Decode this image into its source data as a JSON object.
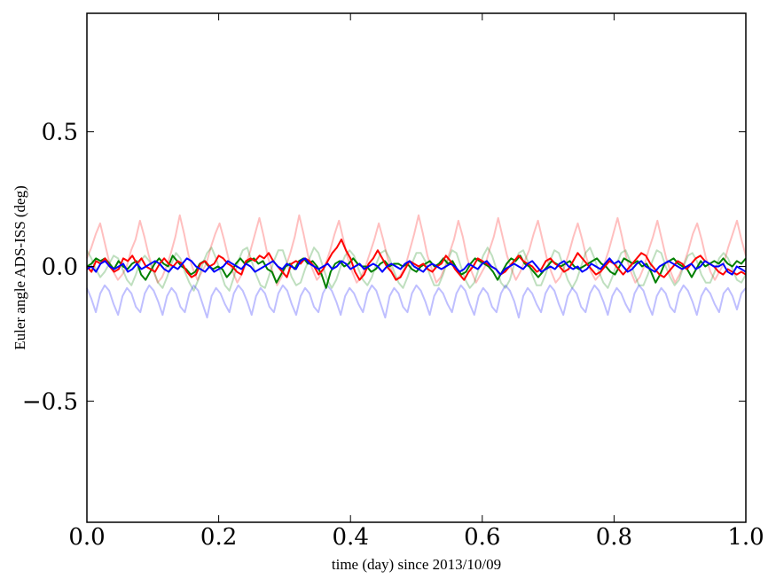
{
  "chart_data": {
    "type": "line",
    "title": "",
    "xlabel": "time (day) since 2013/10/09",
    "ylabel": "Euler angle ADS-ISS (deg)",
    "xlim": [
      0.0,
      1.0
    ],
    "ylim": [
      -0.95,
      0.94
    ],
    "xticks": [
      0.0,
      0.2,
      0.4,
      0.6,
      0.8,
      1.0
    ],
    "xtick_labels": [
      "0.0",
      "0.2",
      "0.4",
      "0.6",
      "0.8",
      "1.0"
    ],
    "yticks": [
      -0.5,
      0.0,
      0.5
    ],
    "ytick_labels": [
      "−0.5",
      "0.0",
      "0.5"
    ],
    "grid": false,
    "legend": "none",
    "series": [
      {
        "color": "#ff0000",
        "opacity": 0.25,
        "values": [
          0.03,
          0.07,
          0.12,
          0.16,
          0.09,
          0.02,
          -0.02,
          -0.05,
          -0.03,
          0.0,
          0.06,
          0.1,
          0.17,
          0.11,
          0.04,
          -0.01,
          -0.06,
          -0.04,
          0.0,
          0.05,
          0.11,
          0.19,
          0.12,
          0.04,
          -0.01,
          -0.05,
          -0.02,
          0.01,
          0.07,
          0.12,
          0.16,
          0.1,
          0.03,
          -0.02,
          -0.06,
          -0.03,
          0.01,
          0.06,
          0.12,
          0.18,
          0.11,
          0.03,
          -0.02,
          -0.07,
          -0.04,
          0.0,
          0.05,
          0.11,
          0.19,
          0.12,
          0.04,
          -0.01,
          -0.05,
          -0.03,
          0.01,
          0.06,
          0.12,
          0.17,
          0.1,
          0.03,
          -0.02,
          -0.06,
          -0.04,
          0.0,
          0.05,
          0.1,
          0.16,
          0.1,
          0.03,
          -0.02,
          -0.05,
          -0.03,
          0.0,
          0.06,
          0.12,
          0.19,
          0.12,
          0.04,
          -0.01,
          -0.06,
          -0.04,
          0.0,
          0.05,
          0.1,
          0.17,
          0.11,
          0.03,
          -0.02,
          -0.06,
          -0.03,
          0.0,
          0.06,
          0.11,
          0.18,
          0.11,
          0.04,
          -0.01,
          -0.05,
          -0.02,
          0.02,
          0.06,
          0.12,
          0.17,
          0.1,
          0.03,
          -0.02,
          -0.06,
          -0.04,
          0.0,
          0.05,
          0.11,
          0.16,
          0.1,
          0.03,
          -0.02,
          -0.05,
          -0.03,
          0.01,
          0.06,
          0.12,
          0.18,
          0.11,
          0.03,
          -0.02,
          -0.06,
          -0.04,
          0.0,
          0.06,
          0.11,
          0.17,
          0.1,
          0.03,
          -0.02,
          -0.06,
          -0.03,
          0.01,
          0.06,
          0.12,
          0.16,
          0.1,
          0.03,
          -0.02,
          -0.05,
          -0.02,
          0.01,
          0.07,
          0.12,
          0.17,
          0.1,
          0.04
        ]
      },
      {
        "color": "#008000",
        "opacity": 0.25,
        "values": [
          0.06,
          0.03,
          -0.01,
          -0.04,
          -0.02,
          0.01,
          0.04,
          0.03,
          -0.01,
          -0.05,
          -0.07,
          -0.03,
          0.02,
          0.04,
          0.02,
          -0.02,
          -0.06,
          -0.08,
          -0.04,
          0.01,
          0.05,
          0.03,
          -0.02,
          -0.06,
          -0.09,
          -0.05,
          0.01,
          0.05,
          0.07,
          0.03,
          -0.02,
          -0.07,
          -0.09,
          -0.04,
          0.02,
          0.06,
          0.07,
          0.02,
          -0.03,
          -0.07,
          -0.08,
          -0.03,
          0.02,
          0.06,
          0.06,
          0.01,
          -0.04,
          -0.07,
          -0.06,
          -0.01,
          0.03,
          0.07,
          0.05,
          0.0,
          -0.05,
          -0.08,
          -0.05,
          0.0,
          0.04,
          0.06,
          0.04,
          -0.01,
          -0.05,
          -0.07,
          -0.04,
          0.01,
          0.05,
          0.06,
          0.03,
          -0.02,
          -0.06,
          -0.08,
          -0.04,
          0.01,
          0.05,
          0.05,
          0.02,
          -0.03,
          -0.07,
          -0.07,
          -0.03,
          0.02,
          0.06,
          0.05,
          0.0,
          -0.05,
          -0.08,
          -0.06,
          -0.01,
          0.04,
          0.07,
          0.04,
          -0.01,
          -0.06,
          -0.08,
          -0.05,
          0.01,
          0.05,
          0.06,
          0.02,
          -0.03,
          -0.07,
          -0.07,
          -0.03,
          0.02,
          0.06,
          0.05,
          0.0,
          -0.05,
          -0.08,
          -0.05,
          0.0,
          0.05,
          0.07,
          0.03,
          -0.02,
          -0.06,
          -0.08,
          -0.04,
          0.01,
          0.05,
          0.06,
          0.02,
          -0.03,
          -0.07,
          -0.07,
          -0.03,
          0.02,
          0.06,
          0.05,
          0.0,
          -0.04,
          -0.07,
          -0.05,
          0.0,
          0.04,
          0.05,
          0.02,
          -0.03,
          -0.06,
          -0.06,
          -0.02,
          0.03,
          0.05,
          0.03,
          -0.01,
          -0.05,
          -0.06,
          -0.03
        ]
      },
      {
        "color": "#0000ff",
        "opacity": 0.25,
        "values": [
          -0.08,
          -0.12,
          -0.17,
          -0.1,
          -0.07,
          -0.09,
          -0.14,
          -0.18,
          -0.11,
          -0.08,
          -0.1,
          -0.15,
          -0.17,
          -0.1,
          -0.07,
          -0.09,
          -0.13,
          -0.18,
          -0.11,
          -0.08,
          -0.1,
          -0.15,
          -0.17,
          -0.1,
          -0.07,
          -0.09,
          -0.14,
          -0.19,
          -0.11,
          -0.08,
          -0.1,
          -0.14,
          -0.17,
          -0.1,
          -0.07,
          -0.09,
          -0.13,
          -0.18,
          -0.11,
          -0.08,
          -0.1,
          -0.15,
          -0.17,
          -0.1,
          -0.07,
          -0.09,
          -0.14,
          -0.18,
          -0.11,
          -0.08,
          -0.1,
          -0.15,
          -0.17,
          -0.1,
          -0.07,
          -0.09,
          -0.13,
          -0.18,
          -0.11,
          -0.08,
          -0.1,
          -0.14,
          -0.17,
          -0.1,
          -0.07,
          -0.09,
          -0.14,
          -0.19,
          -0.11,
          -0.08,
          -0.1,
          -0.15,
          -0.17,
          -0.1,
          -0.07,
          -0.09,
          -0.13,
          -0.18,
          -0.11,
          -0.08,
          -0.1,
          -0.14,
          -0.17,
          -0.1,
          -0.07,
          -0.09,
          -0.14,
          -0.18,
          -0.11,
          -0.08,
          -0.1,
          -0.15,
          -0.17,
          -0.1,
          -0.07,
          -0.09,
          -0.13,
          -0.19,
          -0.11,
          -0.08,
          -0.1,
          -0.14,
          -0.17,
          -0.1,
          -0.07,
          -0.09,
          -0.14,
          -0.18,
          -0.11,
          -0.08,
          -0.1,
          -0.15,
          -0.17,
          -0.1,
          -0.07,
          -0.09,
          -0.13,
          -0.18,
          -0.11,
          -0.08,
          -0.1,
          -0.14,
          -0.17,
          -0.1,
          -0.07,
          -0.09,
          -0.14,
          -0.18,
          -0.11,
          -0.08,
          -0.1,
          -0.15,
          -0.17,
          -0.1,
          -0.07,
          -0.09,
          -0.13,
          -0.18,
          -0.11,
          -0.08,
          -0.1,
          -0.14,
          -0.17,
          -0.1,
          -0.08,
          -0.11,
          -0.16,
          -0.1,
          -0.08
        ]
      },
      {
        "color": "#008000",
        "opacity": 1.0,
        "values": [
          0.0,
          0.01,
          0.03,
          0.02,
          0.03,
          0.01,
          -0.01,
          0.02,
          0.0,
          -0.01,
          0.01,
          0.02,
          -0.03,
          -0.05,
          -0.02,
          0.01,
          0.03,
          0.01,
          0.0,
          0.04,
          0.02,
          0.0,
          -0.01,
          -0.03,
          -0.02,
          0.01,
          0.02,
          0.0,
          -0.01,
          0.0,
          -0.01,
          -0.04,
          -0.02,
          0.01,
          0.03,
          0.01,
          0.02,
          0.03,
          0.01,
          0.02,
          -0.01,
          -0.02,
          -0.06,
          -0.03,
          0.0,
          0.01,
          -0.01,
          0.02,
          0.03,
          0.01,
          0.02,
          0.0,
          -0.03,
          -0.08,
          -0.02,
          0.01,
          0.02,
          0.0,
          0.01,
          0.03,
          0.01,
          0.0,
          0.0,
          -0.02,
          -0.01,
          0.01,
          0.02,
          0.0,
          0.01,
          0.01,
          0.0,
          0.01,
          -0.01,
          -0.02,
          0.0,
          0.01,
          0.02,
          0.0,
          0.01,
          0.03,
          0.01,
          0.02,
          -0.01,
          -0.03,
          -0.02,
          0.01,
          0.03,
          0.02,
          0.01,
          0.0,
          -0.02,
          -0.05,
          -0.02,
          0.01,
          0.03,
          0.02,
          0.04,
          0.01,
          0.0,
          -0.02,
          -0.04,
          -0.02,
          0.0,
          0.02,
          0.01,
          0.0,
          0.01,
          0.02,
          0.0,
          -0.01,
          0.0,
          0.01,
          0.02,
          0.03,
          0.01,
          0.0,
          -0.02,
          -0.03,
          0.0,
          0.03,
          0.02,
          0.01,
          0.02,
          0.0,
          0.01,
          -0.02,
          -0.06,
          -0.03,
          0.01,
          0.02,
          0.03,
          0.01,
          0.0,
          -0.01,
          -0.04,
          -0.01,
          0.02,
          0.0,
          0.01,
          0.02,
          0.01,
          0.03,
          0.01,
          0.0,
          0.02,
          0.01,
          0.03
        ]
      },
      {
        "color": "#ff0000",
        "opacity": 1.0,
        "values": [
          0.0,
          -0.02,
          0.02,
          0.01,
          0.03,
          0.0,
          -0.02,
          -0.01,
          0.03,
          0.02,
          0.04,
          0.01,
          0.03,
          0.0,
          -0.01,
          -0.02,
          0.01,
          0.03,
          0.01,
          0.0,
          0.02,
          0.01,
          -0.02,
          -0.04,
          -0.03,
          0.01,
          0.02,
          0.0,
          0.01,
          0.04,
          0.03,
          0.01,
          0.0,
          -0.02,
          -0.03,
          0.02,
          0.03,
          0.02,
          0.04,
          0.03,
          0.05,
          0.02,
          0.0,
          -0.02,
          -0.04,
          0.01,
          0.02,
          0.01,
          0.03,
          0.02,
          0.0,
          -0.03,
          -0.01,
          0.02,
          0.05,
          0.07,
          0.1,
          0.06,
          0.03,
          -0.02,
          -0.05,
          -0.03,
          0.01,
          0.03,
          0.06,
          0.03,
          0.0,
          -0.02,
          -0.05,
          -0.04,
          -0.01,
          0.02,
          0.01,
          0.0,
          0.01,
          -0.01,
          -0.02,
          0.0,
          0.01,
          0.04,
          0.02,
          -0.01,
          -0.03,
          -0.05,
          -0.02,
          0.0,
          0.03,
          0.02,
          0.01,
          0.0,
          -0.01,
          -0.03,
          -0.02,
          0.0,
          0.02,
          0.04,
          0.02,
          0.01,
          0.0,
          -0.02,
          -0.01,
          0.02,
          0.03,
          0.01,
          0.0,
          -0.02,
          -0.01,
          0.02,
          0.05,
          0.03,
          0.01,
          -0.01,
          -0.03,
          -0.02,
          0.0,
          0.02,
          0.01,
          -0.01,
          -0.03,
          -0.01,
          0.01,
          0.03,
          0.05,
          0.04,
          0.01,
          -0.01,
          -0.03,
          -0.04,
          -0.02,
          0.0,
          0.02,
          0.01,
          -0.01,
          0.01,
          0.03,
          0.04,
          0.02,
          0.01,
          0.0,
          -0.02,
          -0.03,
          -0.01,
          -0.02,
          -0.03,
          -0.02,
          -0.03
        ]
      },
      {
        "color": "#0000ff",
        "opacity": 1.0,
        "values": [
          -0.01,
          0.0,
          -0.02,
          0.01,
          0.02,
          0.0,
          -0.01,
          0.0,
          0.01,
          -0.02,
          -0.01,
          0.01,
          -0.01,
          0.0,
          0.01,
          0.02,
          0.01,
          -0.01,
          -0.02,
          0.0,
          -0.01,
          0.01,
          0.03,
          0.02,
          0.0,
          -0.01,
          -0.02,
          0.0,
          -0.02,
          -0.01,
          0.0,
          0.02,
          0.01,
          0.0,
          -0.01,
          0.01,
          0.0,
          -0.02,
          -0.01,
          0.0,
          0.01,
          0.02,
          0.0,
          -0.01,
          0.01,
          0.0,
          -0.01,
          0.02,
          0.03,
          0.01,
          0.0,
          -0.01,
          0.0,
          0.01,
          -0.01,
          0.0,
          0.02,
          0.01,
          -0.01,
          0.0,
          0.01,
          -0.01,
          0.0,
          0.01,
          0.0,
          -0.02,
          0.0,
          0.01,
          0.0,
          -0.01,
          0.01,
          0.02,
          0.0,
          -0.01,
          -0.02,
          0.0,
          0.01,
          0.0,
          -0.01,
          0.0,
          0.01,
          0.0,
          -0.02,
          -0.01,
          0.01,
          0.0,
          -0.01,
          0.01,
          0.02,
          0.0,
          -0.01,
          -0.03,
          -0.01,
          0.0,
          0.01,
          0.0,
          -0.01,
          0.01,
          0.02,
          0.0,
          -0.02,
          -0.01,
          0.0,
          -0.01,
          0.01,
          0.02,
          0.0,
          -0.01,
          0.0,
          -0.02,
          -0.01,
          0.01,
          0.0,
          -0.01,
          0.01,
          0.03,
          0.01,
          0.02,
          0.0,
          -0.02,
          -0.01,
          0.01,
          0.02,
          0.0,
          -0.01,
          -0.02,
          0.0,
          0.01,
          0.02,
          0.01,
          0.0,
          -0.01,
          0.0,
          0.01,
          -0.01,
          0.0,
          0.02,
          0.01,
          0.0,
          0.0,
          0.01,
          -0.02,
          -0.03,
          0.0,
          -0.01,
          -0.02
        ]
      }
    ]
  }
}
